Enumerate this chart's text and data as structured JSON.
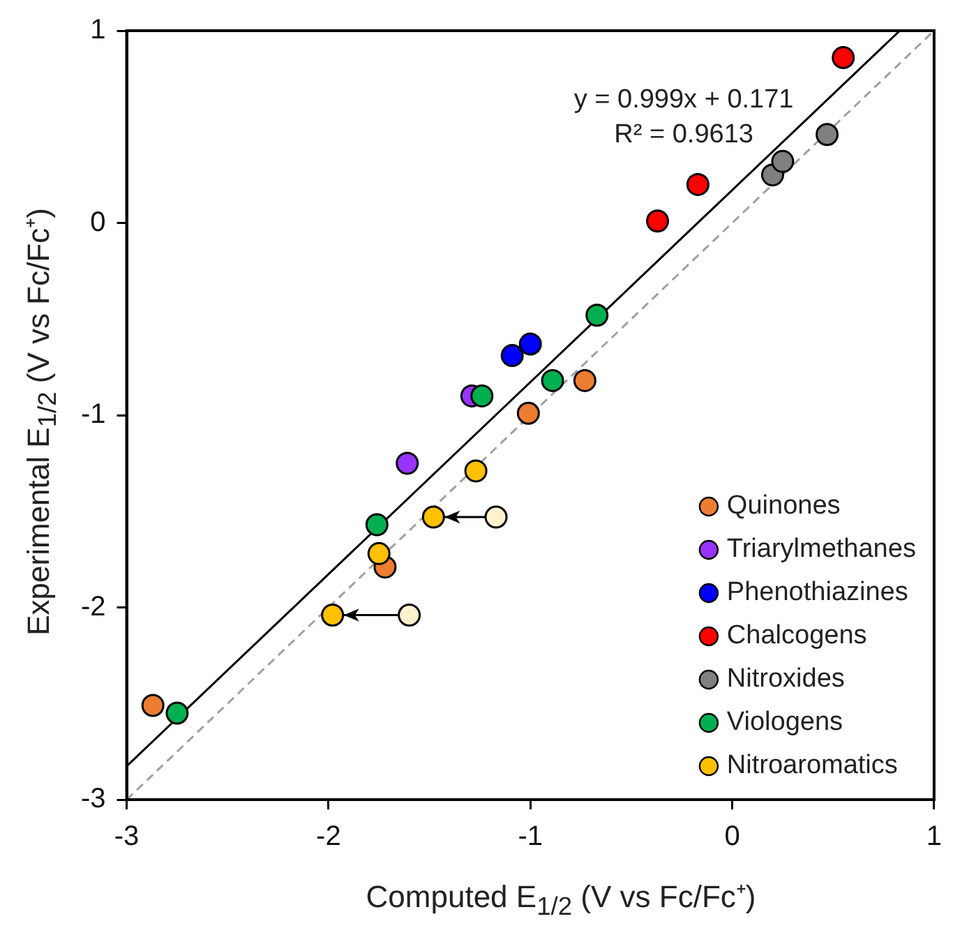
{
  "chart_data": {
    "type": "scatter",
    "xlabel": "Computed E$_{1/2}$ (V vs Fc/Fc⁺)",
    "ylabel": "Experimental E$_{1/2}$ (V vs Fc/Fc⁺)",
    "xlim": [
      -3,
      1
    ],
    "xticks": [
      -3,
      -2,
      -1,
      0,
      1
    ],
    "ylim": [
      -3,
      1
    ],
    "yticks": [
      -3,
      -2,
      -1,
      0,
      1
    ],
    "grid": false,
    "legend": "bottom right",
    "marker": "circle",
    "annotations": [
      "y = 0.999x + 0.171",
      "R² = 0.9613"
    ],
    "series": [
      {
        "name": "Quinones",
        "color": "#ed7d31",
        "x": [
          -2.87,
          -1.72,
          -1.01,
          -0.73
        ],
        "values": [
          -2.51,
          -1.79,
          -0.99,
          -0.82
        ]
      },
      {
        "name": "Triarylmethanes",
        "color": "#9933ff",
        "x": [
          -1.61,
          -1.29
        ],
        "values": [
          -1.25,
          -0.9
        ]
      },
      {
        "name": "Phenothiazines",
        "color": "#0000ff",
        "x": [
          -1.09,
          -1.0
        ],
        "values": [
          -0.69,
          -0.63
        ]
      },
      {
        "name": "Chalcogens",
        "color": "#ff0000",
        "x": [
          -0.37,
          -0.17,
          0.55
        ],
        "values": [
          0.01,
          0.2,
          0.86
        ]
      },
      {
        "name": "Nitroxides",
        "color": "#808080",
        "x": [
          0.2,
          0.25,
          0.47
        ],
        "values": [
          0.25,
          0.32,
          0.46
        ]
      },
      {
        "name": "Viologens",
        "color": "#00b050",
        "x": [
          -2.75,
          -1.76,
          -1.24,
          -0.89,
          -0.67
        ],
        "values": [
          -2.55,
          -1.57,
          -0.9,
          -0.82,
          -0.48
        ]
      },
      {
        "name": "Nitroaromatics",
        "color": "#ffc000",
        "x": [
          -1.98,
          -1.48,
          -1.75,
          -1.27
        ],
        "values": [
          -2.04,
          -1.53,
          -1.72,
          -1.29
        ]
      },
      {
        "color": "#fff2cc",
        "x": [
          -1.6,
          -1.17
        ],
        "values": [
          -2.04,
          -1.53
        ]
      },
      {
        "type": "line",
        "color": "#000000",
        "marker": "none",
        "x": [
          -3,
          0.83
        ],
        "values": [
          -2.826,
          1.0
        ]
      },
      {
        "type": "line",
        "color": "#a0a0a0",
        "marker": "none",
        "line_style": "dashed",
        "x": [
          -3,
          1
        ],
        "values": [
          -3,
          1
        ]
      }
    ]
  }
}
